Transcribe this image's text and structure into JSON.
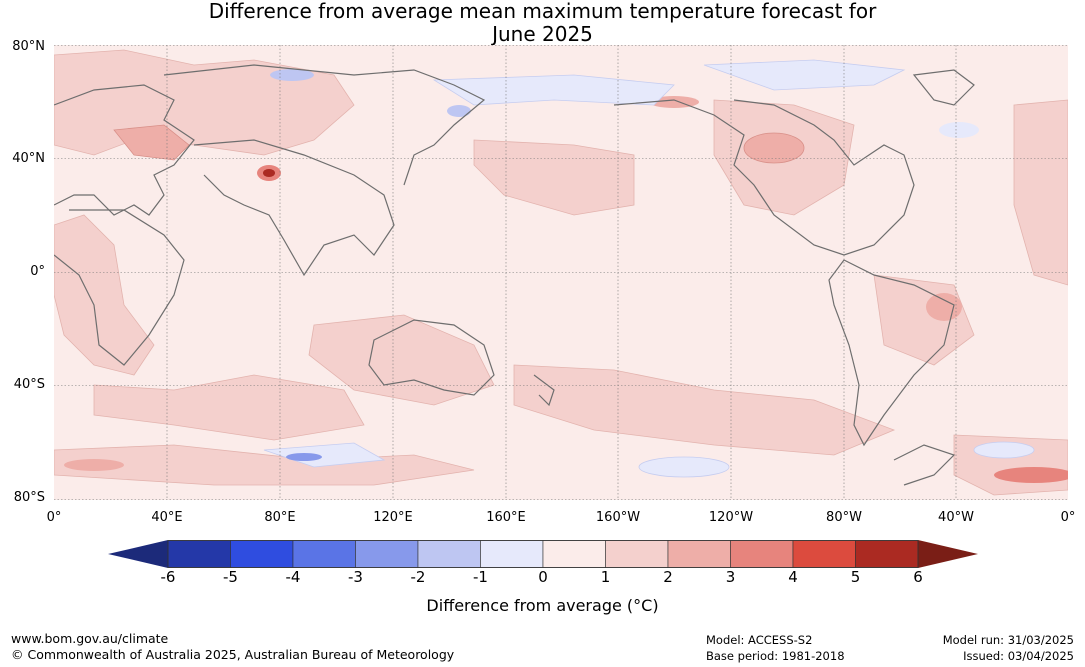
{
  "title_line1": "Difference from average mean maximum temperature forecast for",
  "title_line2": "June 2025",
  "lat_labels": [
    "80°N",
    "40°N",
    "0°",
    "40°S",
    "80°S"
  ],
  "lon_labels": [
    "0°",
    "40°E",
    "80°E",
    "120°E",
    "160°E",
    "160°W",
    "120°W",
    "80°W",
    "40°W",
    "0°"
  ],
  "colorbar": {
    "ticks": [
      "-6",
      "-5",
      "-4",
      "-3",
      "-2",
      "-1",
      "0",
      "1",
      "2",
      "3",
      "4",
      "5",
      "6"
    ],
    "label": "Difference from average ($^\\circ$C)",
    "label_display": "Difference from average (",
    "unit": "°C",
    "low_extend_color": "#1c2a7a",
    "high_extend_color": "#7a1e16",
    "colors": [
      "#2438a8",
      "#2f4de0",
      "#5a74e6",
      "#8799eb",
      "#bec6f2",
      "#e6e9fb",
      "#fbecea",
      "#f4d0cd",
      "#eeaea8",
      "#e7847d",
      "#dc4b3e",
      "#ab2a22"
    ]
  },
  "footer": {
    "url": "www.bom.gov.au/climate",
    "copyright": "© Commonwealth of Australia 2025, Australian Bureau of Meteorology",
    "model": "Model: ACCESS-S2",
    "base_period": "Base period: 1981-2018",
    "model_run": "Model run: 31/03/2025",
    "issued": "Issued: 03/04/2025"
  }
}
